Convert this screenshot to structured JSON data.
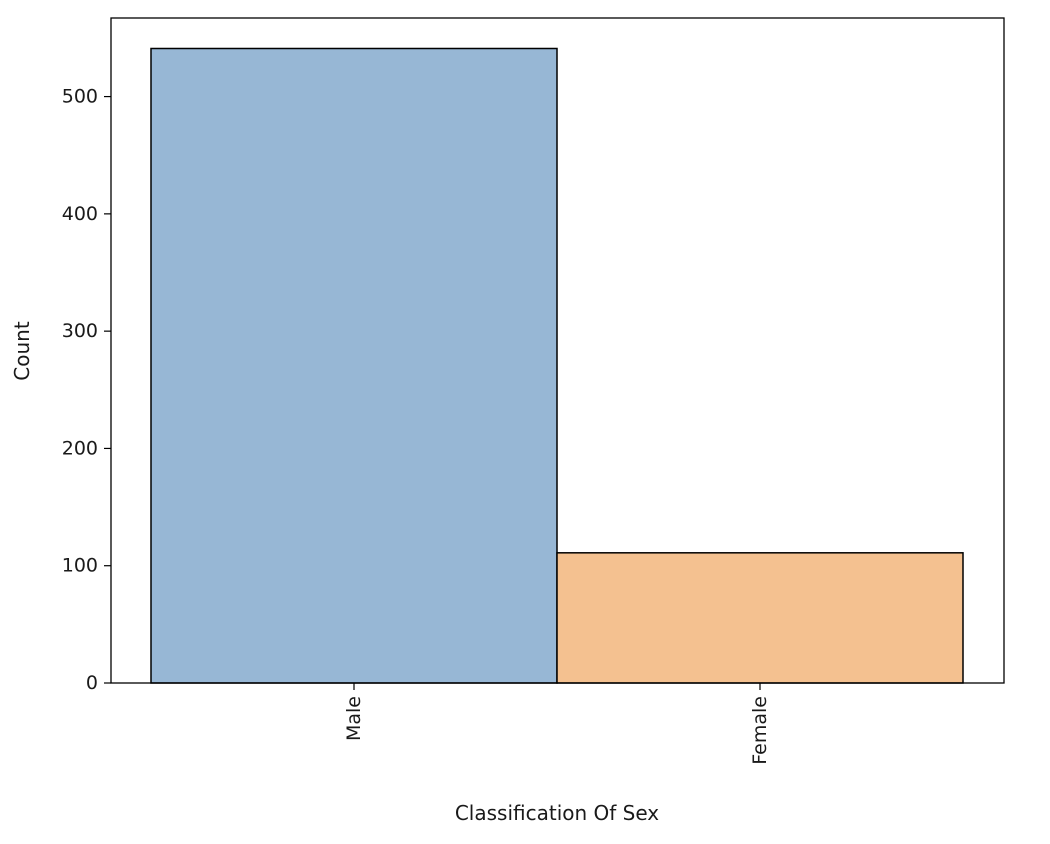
{
  "chart_data": {
    "type": "bar",
    "categories": [
      "Male",
      "Female"
    ],
    "values": [
      541,
      111
    ],
    "colors": [
      "#97b7d5",
      "#f4c190"
    ],
    "edge_color": "#000000",
    "title": "",
    "xlabel": "Classification Of Sex",
    "ylabel": "Count",
    "ylim": [
      0,
      567
    ],
    "yticks": [
      0,
      100,
      200,
      300,
      400,
      500
    ],
    "xtick_rotation": "vertical",
    "grid": false,
    "legend": "none"
  }
}
